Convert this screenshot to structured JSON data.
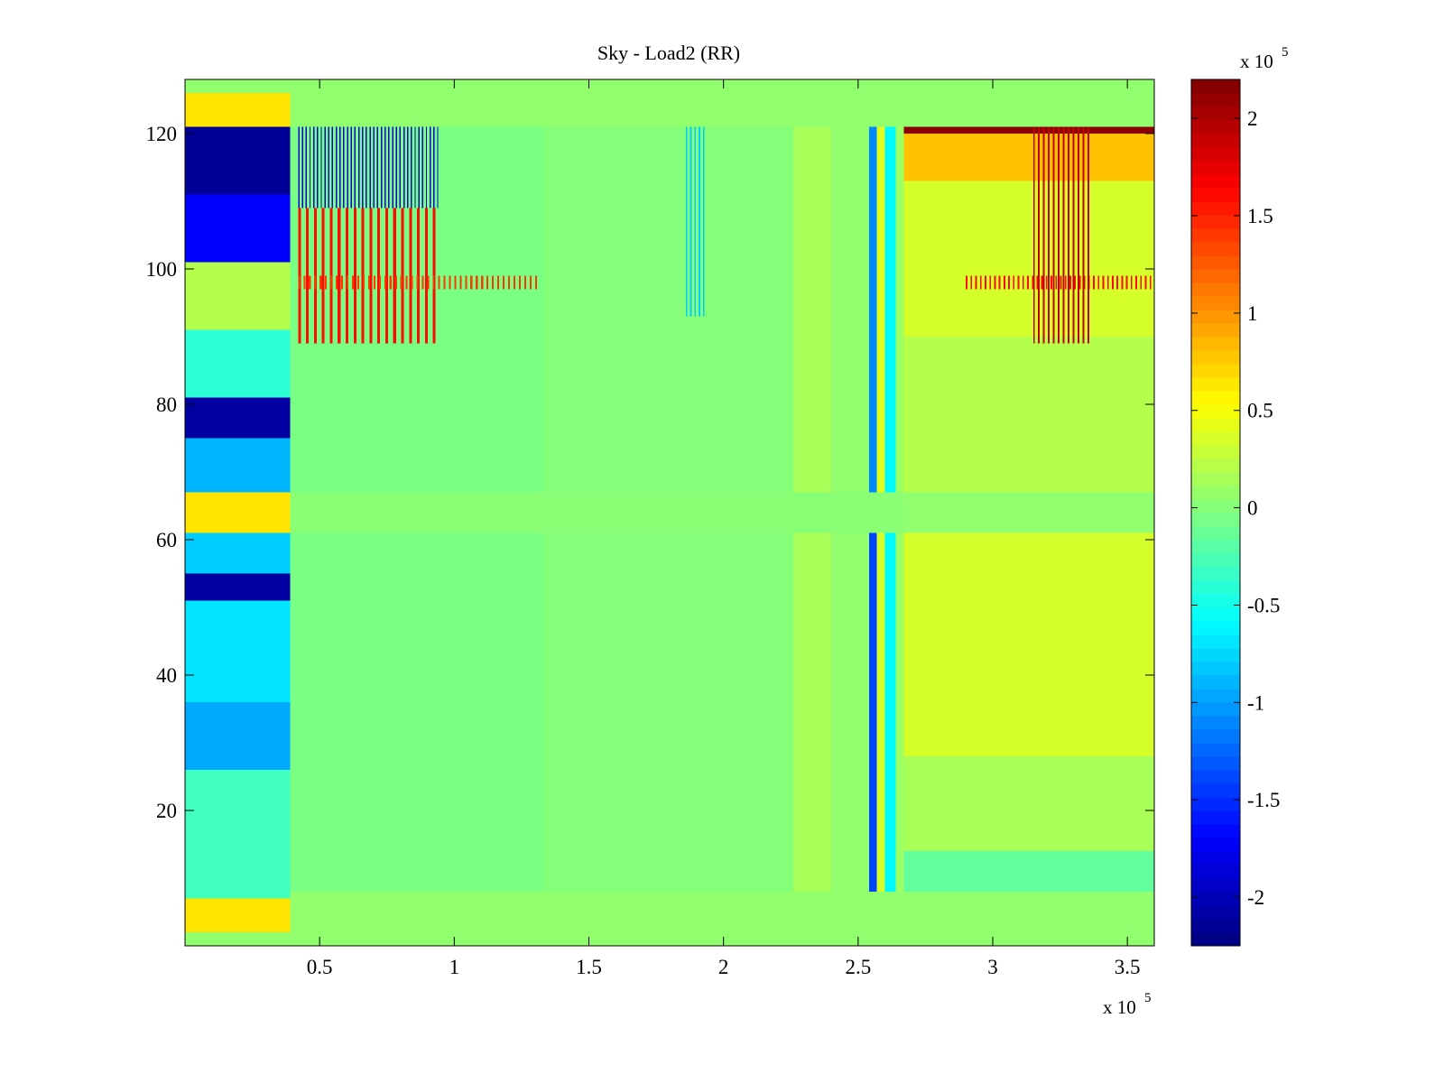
{
  "chart_data": {
    "type": "heatmap",
    "title": "Sky - Load2 (RR)",
    "xlabel": "",
    "ylabel": "",
    "x_multiplier_label": "x 10",
    "x_multiplier_exp": "5",
    "xlim": [
      0,
      3.6
    ],
    "ylim": [
      0,
      128
    ],
    "x_ticks": [
      0.5,
      1,
      1.5,
      2,
      2.5,
      3,
      3.5
    ],
    "x_tick_labels": [
      "0.5",
      "1",
      "1.5",
      "2",
      "2.5",
      "3",
      "3.5"
    ],
    "y_ticks": [
      20,
      40,
      60,
      80,
      100,
      120
    ],
    "y_tick_labels": [
      "20",
      "40",
      "60",
      "80",
      "100",
      "120"
    ],
    "colorbar": {
      "colormap": "jet",
      "limits": [
        -2.25,
        2.2
      ],
      "multiplier_label": "x 10",
      "multiplier_exp": "5",
      "ticks": [
        -2,
        -1.5,
        -1,
        -0.5,
        0,
        0.5,
        1,
        1.5,
        2
      ],
      "tick_labels": [
        "-2",
        "-1.5",
        "-1",
        "-0.5",
        "0",
        "0.5",
        "1",
        "1.5",
        "2"
      ]
    },
    "background_value": 0.05,
    "regions": [
      {
        "x": [
          0,
          0.39
        ],
        "y": [
          121,
          126
        ],
        "value": 0.65
      },
      {
        "x": [
          0,
          0.39
        ],
        "y": [
          111,
          121
        ],
        "value": -2.15
      },
      {
        "x": [
          0,
          0.39
        ],
        "y": [
          101,
          111
        ],
        "value": -1.7
      },
      {
        "x": [
          0,
          0.39
        ],
        "y": [
          91,
          101
        ],
        "value": 0.2
      },
      {
        "x": [
          0,
          0.39
        ],
        "y": [
          81,
          91
        ],
        "value": -0.4
      },
      {
        "x": [
          0,
          0.39
        ],
        "y": [
          75,
          81
        ],
        "value": -2.1
      },
      {
        "x": [
          0,
          0.39
        ],
        "y": [
          67,
          75
        ],
        "value": -0.9
      },
      {
        "x": [
          0,
          0.39
        ],
        "y": [
          61,
          67
        ],
        "value": 0.65
      },
      {
        "x": [
          0,
          0.39
        ],
        "y": [
          55,
          61
        ],
        "value": -0.8
      },
      {
        "x": [
          0,
          0.39
        ],
        "y": [
          51,
          55
        ],
        "value": -2.1
      },
      {
        "x": [
          0,
          0.39
        ],
        "y": [
          36,
          51
        ],
        "value": -0.7
      },
      {
        "x": [
          0,
          0.39
        ],
        "y": [
          26,
          36
        ],
        "value": -0.95
      },
      {
        "x": [
          0,
          0.39
        ],
        "y": [
          7,
          26
        ],
        "value": -0.3
      },
      {
        "x": [
          0,
          0.39
        ],
        "y": [
          2,
          7
        ],
        "value": 0.65
      },
      {
        "x": [
          0.39,
          1.33
        ],
        "y": [
          8,
          121
        ],
        "value": -0.05
      },
      {
        "x": [
          1.33,
          2.26
        ],
        "y": [
          8,
          121
        ],
        "value": 0.0
      },
      {
        "x": [
          2.26,
          2.4
        ],
        "y": [
          8,
          121
        ],
        "value": 0.15
      },
      {
        "x": [
          2.4,
          2.54
        ],
        "y": [
          8,
          121
        ],
        "value": 0.05
      },
      {
        "x": [
          2.54,
          2.57
        ],
        "y": [
          8,
          67
        ],
        "value": -1.4
      },
      {
        "x": [
          2.54,
          2.57
        ],
        "y": [
          67,
          121
        ],
        "value": -1.1
      },
      {
        "x": [
          2.57,
          2.6
        ],
        "y": [
          8,
          67
        ],
        "value": 0.35
      },
      {
        "x": [
          2.57,
          2.6
        ],
        "y": [
          67,
          121
        ],
        "value": 0.4
      },
      {
        "x": [
          2.6,
          2.64
        ],
        "y": [
          8,
          121
        ],
        "value": -0.6
      },
      {
        "x": [
          2.64,
          2.67
        ],
        "y": [
          8,
          121
        ],
        "value": 0.1
      },
      {
        "x": [
          2.67,
          3.6
        ],
        "y": [
          113,
          121
        ],
        "value": 0.8
      },
      {
        "x": [
          2.67,
          3.6
        ],
        "y": [
          120,
          121
        ],
        "value": 2.15
      },
      {
        "x": [
          2.67,
          3.6
        ],
        "y": [
          90,
          113
        ],
        "value": 0.35
      },
      {
        "x": [
          2.67,
          3.6
        ],
        "y": [
          67,
          90
        ],
        "value": 0.2
      },
      {
        "x": [
          2.67,
          3.6
        ],
        "y": [
          61,
          67
        ],
        "value": 0.05
      },
      {
        "x": [
          2.67,
          3.6
        ],
        "y": [
          28,
          61
        ],
        "value": 0.35
      },
      {
        "x": [
          2.67,
          3.6
        ],
        "y": [
          14,
          28
        ],
        "value": 0.15
      },
      {
        "x": [
          2.67,
          3.6
        ],
        "y": [
          8,
          14
        ],
        "value": -0.15
      },
      {
        "x": [
          0.39,
          2.54
        ],
        "y": [
          61,
          67
        ],
        "value": 0.02
      },
      {
        "x": [
          2.54,
          2.67
        ],
        "y": [
          61,
          67
        ],
        "value": 0.02
      }
    ],
    "stripe_groups": [
      {
        "x_start": 0.42,
        "x_end": 0.95,
        "count": 38,
        "y": [
          109,
          121
        ],
        "value": -1.9
      },
      {
        "x_start": 0.42,
        "x_end": 0.95,
        "count": 18,
        "y": [
          89,
          109
        ],
        "value": 1.6
      },
      {
        "x_start": 0.42,
        "x_end": 1.32,
        "count": 45,
        "y": [
          97,
          99
        ],
        "value": 1.4
      },
      {
        "x_start": 1.86,
        "x_end": 1.94,
        "count": 5,
        "y": [
          93,
          121
        ],
        "value": -0.8
      },
      {
        "x_start": 2.9,
        "x_end": 3.6,
        "count": 40,
        "y": [
          97,
          99
        ],
        "value": 1.6
      },
      {
        "x_start": 3.15,
        "x_end": 3.37,
        "count": 12,
        "y": [
          89,
          121
        ],
        "value": 1.9
      }
    ]
  }
}
